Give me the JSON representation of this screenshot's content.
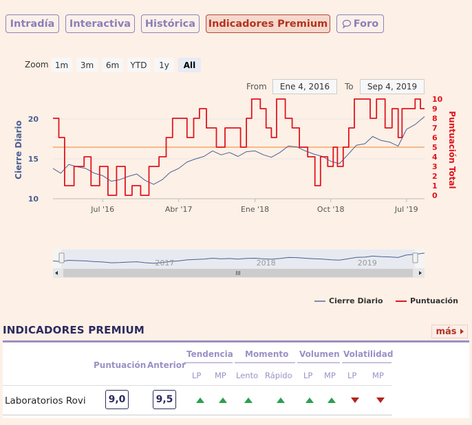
{
  "tabs": [
    {
      "label": "Intradía",
      "active": false
    },
    {
      "label": "Interactiva",
      "active": false
    },
    {
      "label": "Histórica",
      "active": false
    },
    {
      "label": "Indicadores Premium",
      "active": true
    },
    {
      "label": "Foro",
      "active": false,
      "icon": "chat-bubble-icon"
    }
  ],
  "zoom": {
    "label": "Zoom",
    "buttons": [
      "1m",
      "3m",
      "6m",
      "YTD",
      "1y",
      "All"
    ],
    "selected": "All"
  },
  "range": {
    "from_label": "From",
    "from_value": "Ene 4, 2016",
    "to_label": "To",
    "to_value": "Sep 4, 2019"
  },
  "chart_data": {
    "type": "line",
    "x_start": "2016-01-04",
    "x_end": "2019-09-04",
    "x_ticks": [
      {
        "date": "2016-07-01",
        "label": "Jul '16"
      },
      {
        "date": "2017-04-01",
        "label": "Abr '17"
      },
      {
        "date": "2018-01-01",
        "label": "Ene '18"
      },
      {
        "date": "2018-10-01",
        "label": "Oct '18"
      },
      {
        "date": "2019-07-01",
        "label": "Jul '19"
      }
    ],
    "y_left": {
      "label": "Cierre Diario",
      "ticks": [
        10,
        15,
        20
      ],
      "range": [
        10,
        22.5
      ]
    },
    "y_right": {
      "label": "Puntuación Total",
      "ticks": [
        0,
        1,
        2,
        3,
        4,
        5,
        6,
        7,
        8,
        9,
        10
      ],
      "range": [
        0,
        10
      ]
    },
    "reference_line": {
      "axis": "right",
      "value": 5,
      "color": "#f3a56b"
    },
    "series": [
      {
        "name": "Cierre Diario",
        "axis": "left",
        "color": "#4a5e93",
        "points": [
          [
            "2016-01-04",
            13.8
          ],
          [
            "2016-02-01",
            13.2
          ],
          [
            "2016-03-01",
            14.3
          ],
          [
            "2016-04-01",
            14.0
          ],
          [
            "2016-05-01",
            13.8
          ],
          [
            "2016-06-01",
            13.2
          ],
          [
            "2016-07-01",
            12.9
          ],
          [
            "2016-08-01",
            12.2
          ],
          [
            "2016-09-01",
            12.4
          ],
          [
            "2016-10-01",
            12.8
          ],
          [
            "2016-11-01",
            13.1
          ],
          [
            "2016-12-01",
            12.3
          ],
          [
            "2017-01-01",
            11.8
          ],
          [
            "2017-02-01",
            12.4
          ],
          [
            "2017-03-01",
            13.3
          ],
          [
            "2017-04-01",
            13.8
          ],
          [
            "2017-05-01",
            14.6
          ],
          [
            "2017-06-01",
            15.0
          ],
          [
            "2017-07-01",
            15.3
          ],
          [
            "2017-08-01",
            16.0
          ],
          [
            "2017-09-01",
            15.5
          ],
          [
            "2017-10-01",
            15.8
          ],
          [
            "2017-11-01",
            15.3
          ],
          [
            "2017-12-01",
            15.9
          ],
          [
            "2018-01-01",
            16.0
          ],
          [
            "2018-02-01",
            15.5
          ],
          [
            "2018-03-01",
            15.2
          ],
          [
            "2018-04-01",
            15.8
          ],
          [
            "2018-05-01",
            16.6
          ],
          [
            "2018-06-01",
            16.5
          ],
          [
            "2018-07-01",
            16.0
          ],
          [
            "2018-08-01",
            15.6
          ],
          [
            "2018-09-01",
            15.3
          ],
          [
            "2018-10-01",
            14.7
          ],
          [
            "2018-11-01",
            14.4
          ],
          [
            "2018-12-01",
            15.5
          ],
          [
            "2019-01-01",
            16.7
          ],
          [
            "2019-02-01",
            16.9
          ],
          [
            "2019-03-01",
            17.8
          ],
          [
            "2019-04-01",
            17.3
          ],
          [
            "2019-05-01",
            17.1
          ],
          [
            "2019-06-01",
            16.6
          ],
          [
            "2019-07-01",
            18.7
          ],
          [
            "2019-08-01",
            19.3
          ],
          [
            "2019-09-04",
            20.3
          ]
        ]
      },
      {
        "name": "Puntuación",
        "axis": "right",
        "color": "#e0141e",
        "points": [
          [
            "2016-01-04",
            8
          ],
          [
            "2016-01-25",
            8
          ],
          [
            "2016-01-25",
            6
          ],
          [
            "2016-02-15",
            6
          ],
          [
            "2016-02-15",
            1
          ],
          [
            "2016-03-20",
            1
          ],
          [
            "2016-03-20",
            3
          ],
          [
            "2016-04-25",
            3
          ],
          [
            "2016-04-25",
            4
          ],
          [
            "2016-05-20",
            4
          ],
          [
            "2016-05-20",
            1
          ],
          [
            "2016-06-20",
            1
          ],
          [
            "2016-06-20",
            3
          ],
          [
            "2016-07-20",
            3
          ],
          [
            "2016-07-20",
            0
          ],
          [
            "2016-08-20",
            0
          ],
          [
            "2016-08-20",
            3
          ],
          [
            "2016-09-20",
            3
          ],
          [
            "2016-09-20",
            0
          ],
          [
            "2016-10-15",
            0
          ],
          [
            "2016-10-15",
            1
          ],
          [
            "2016-11-15",
            1
          ],
          [
            "2016-11-15",
            0
          ],
          [
            "2016-12-15",
            0
          ],
          [
            "2016-12-15",
            3
          ],
          [
            "2017-01-20",
            3
          ],
          [
            "2017-01-20",
            4
          ],
          [
            "2017-02-15",
            4
          ],
          [
            "2017-02-15",
            6
          ],
          [
            "2017-03-10",
            6
          ],
          [
            "2017-03-10",
            8
          ],
          [
            "2017-05-01",
            8
          ],
          [
            "2017-05-01",
            6
          ],
          [
            "2017-05-25",
            6
          ],
          [
            "2017-05-25",
            8
          ],
          [
            "2017-06-15",
            8
          ],
          [
            "2017-06-15",
            9
          ],
          [
            "2017-07-10",
            9
          ],
          [
            "2017-07-10",
            7
          ],
          [
            "2017-08-15",
            7
          ],
          [
            "2017-08-15",
            5
          ],
          [
            "2017-09-15",
            5
          ],
          [
            "2017-09-15",
            7
          ],
          [
            "2017-11-10",
            7
          ],
          [
            "2017-11-10",
            5
          ],
          [
            "2017-12-01",
            5
          ],
          [
            "2017-12-01",
            8
          ],
          [
            "2017-12-20",
            8
          ],
          [
            "2017-12-20",
            10
          ],
          [
            "2018-01-20",
            10
          ],
          [
            "2018-01-20",
            9
          ],
          [
            "2018-02-10",
            9
          ],
          [
            "2018-02-10",
            7
          ],
          [
            "2018-03-01",
            7
          ],
          [
            "2018-03-01",
            6
          ],
          [
            "2018-03-20",
            6
          ],
          [
            "2018-03-20",
            10
          ],
          [
            "2018-04-20",
            10
          ],
          [
            "2018-04-20",
            8
          ],
          [
            "2018-05-15",
            8
          ],
          [
            "2018-05-15",
            7
          ],
          [
            "2018-06-10",
            7
          ],
          [
            "2018-06-10",
            5
          ],
          [
            "2018-07-10",
            5
          ],
          [
            "2018-07-10",
            4
          ],
          [
            "2018-08-05",
            4
          ],
          [
            "2018-08-05",
            1
          ],
          [
            "2018-08-25",
            1
          ],
          [
            "2018-08-25",
            4
          ],
          [
            "2018-09-20",
            4
          ],
          [
            "2018-09-20",
            3
          ],
          [
            "2018-10-10",
            3
          ],
          [
            "2018-10-10",
            5
          ],
          [
            "2018-10-25",
            5
          ],
          [
            "2018-10-25",
            3
          ],
          [
            "2018-11-15",
            3
          ],
          [
            "2018-11-15",
            5
          ],
          [
            "2018-12-05",
            5
          ],
          [
            "2018-12-05",
            7
          ],
          [
            "2018-12-25",
            7
          ],
          [
            "2018-12-25",
            10
          ],
          [
            "2019-02-20",
            10
          ],
          [
            "2019-02-20",
            8
          ],
          [
            "2019-03-15",
            8
          ],
          [
            "2019-03-15",
            10
          ],
          [
            "2019-04-15",
            10
          ],
          [
            "2019-04-15",
            7
          ],
          [
            "2019-05-10",
            7
          ],
          [
            "2019-05-10",
            9
          ],
          [
            "2019-06-01",
            9
          ],
          [
            "2019-06-01",
            6
          ],
          [
            "2019-06-15",
            6
          ],
          [
            "2019-06-15",
            9
          ],
          [
            "2019-08-01",
            9
          ],
          [
            "2019-08-01",
            10
          ],
          [
            "2019-08-20",
            10
          ],
          [
            "2019-08-20",
            9
          ],
          [
            "2019-09-04",
            9
          ]
        ]
      }
    ],
    "navigator": {
      "year_labels": [
        "2017",
        "2018",
        "2019"
      ],
      "scroll_label": "III"
    },
    "legend": [
      {
        "name": "Cierre Diario",
        "color": "#7a8bb5"
      },
      {
        "name": "Puntuación",
        "color": "#e0141e"
      }
    ]
  },
  "premium": {
    "title": "INDICADORES PREMIUM",
    "more_label": "más",
    "headers": {
      "score": "Puntuación",
      "previous": "Anterior",
      "groups": [
        {
          "label": "Tendencia",
          "subs": [
            "LP",
            "MP"
          ]
        },
        {
          "label": "Momento",
          "subs": [
            "Lento",
            "Rápido"
          ]
        },
        {
          "label": "Volumen",
          "subs": [
            "LP",
            "MP"
          ]
        },
        {
          "label": "Volatilidad",
          "subs": [
            "LP",
            "MP"
          ]
        }
      ]
    },
    "rows": [
      {
        "name": "Laboratorios Rovi",
        "score": "9,0",
        "previous": "9,5",
        "signals": [
          "up",
          "up",
          "up",
          "up",
          "up",
          "up",
          "down",
          "down"
        ]
      }
    ]
  }
}
